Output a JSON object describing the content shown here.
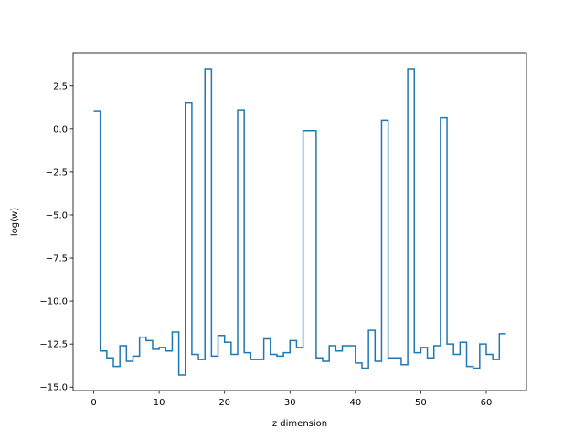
{
  "chart_data": {
    "type": "line",
    "drawstyle": "steps-post",
    "title": "",
    "xlabel": "z dimension",
    "ylabel": "log(w)",
    "xlim": [
      -3.15,
      66.15
    ],
    "ylim": [
      -15.2,
      4.4
    ],
    "xticks": [
      0,
      10,
      20,
      30,
      40,
      50,
      60
    ],
    "xtick_labels": [
      "0",
      "10",
      "20",
      "30",
      "40",
      "50",
      "60"
    ],
    "yticks": [
      -15.0,
      -12.5,
      -10.0,
      -7.5,
      -5.0,
      -2.5,
      0.0,
      2.5
    ],
    "ytick_labels": [
      "−15.0",
      "−12.5",
      "−10.0",
      "−7.5",
      "−5.0",
      "−2.5",
      "0.0",
      "2.5"
    ],
    "grid": false,
    "series": [
      {
        "color": "#1f77b4",
        "x": [
          0,
          1,
          2,
          3,
          4,
          5,
          6,
          7,
          8,
          9,
          10,
          11,
          12,
          13,
          14,
          15,
          16,
          17,
          18,
          19,
          20,
          21,
          22,
          23,
          24,
          25,
          26,
          27,
          28,
          29,
          30,
          31,
          32,
          33,
          34,
          35,
          36,
          37,
          38,
          39,
          40,
          41,
          42,
          43,
          44,
          45,
          46,
          47,
          48,
          49,
          50,
          51,
          52,
          53,
          54,
          55,
          56,
          57,
          58,
          59,
          60,
          61,
          62,
          63
        ],
        "values": [
          1.05,
          -12.9,
          -13.3,
          -13.8,
          -12.6,
          -13.5,
          -13.2,
          -12.1,
          -12.3,
          -12.8,
          -12.7,
          -12.9,
          -11.8,
          -14.3,
          1.5,
          -13.1,
          -13.4,
          3.5,
          -13.2,
          -12.0,
          -12.4,
          -13.1,
          1.1,
          -13.0,
          -13.4,
          -13.4,
          -12.2,
          -13.1,
          -13.2,
          -13.0,
          -12.3,
          -12.7,
          -0.1,
          -0.1,
          -13.3,
          -13.5,
          -12.6,
          -12.9,
          -12.6,
          -12.6,
          -13.6,
          -13.9,
          -11.7,
          -13.5,
          0.5,
          -13.3,
          -13.3,
          -13.7,
          3.5,
          -13.0,
          -12.7,
          -13.3,
          -12.6,
          0.65,
          -12.5,
          -13.1,
          -12.4,
          -13.8,
          -13.9,
          -12.5,
          -13.1,
          -13.4,
          -11.9,
          -11.9
        ]
      }
    ]
  }
}
